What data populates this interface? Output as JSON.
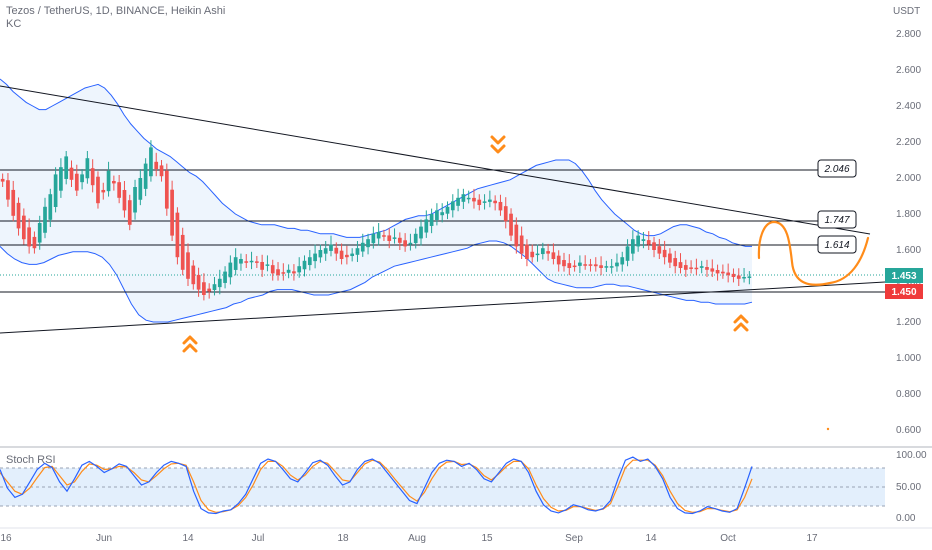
{
  "header": {
    "symbol": "Tezos / TetherUS, 1D, BINANCE, Heikin Ashi",
    "indicator": "KC"
  },
  "colors": {
    "up": "#26a69a",
    "down": "#ef5350",
    "channel": "#2962ff",
    "channel_fill": "#e3effc",
    "trend": "#131722",
    "annotation": "#ff8c1a",
    "rsi_k": "#2962ff",
    "rsi_d": "#ff8c1a"
  },
  "chart_data": {
    "type": "candlestick",
    "y_unit": "USDT",
    "ylim": [
      0.55,
      2.95
    ],
    "y_ticks": [
      "2.800",
      "2.600",
      "2.400",
      "2.200",
      "2.000",
      "1.800",
      "1.600",
      "1.400",
      "1.200",
      "1.000",
      "0.800",
      "0.600"
    ],
    "x_ticks": [
      "16",
      "Jun",
      "14",
      "Jul",
      "18",
      "Aug",
      "15",
      "Sep",
      "14",
      "Oct",
      "17"
    ],
    "levels": [
      "2.046",
      "1.747",
      "1.614"
    ],
    "price_tags": {
      "last": "1.453",
      "support": "1.450"
    },
    "candles_close": [
      1.98,
      1.88,
      1.79,
      1.72,
      1.66,
      1.62,
      1.61,
      1.75,
      1.84,
      1.91,
      2.02,
      2.06,
      2.12,
      1.99,
      1.93,
      2.02,
      2.11,
      1.96,
      1.86,
      1.92,
      2.04,
      1.97,
      1.89,
      1.82,
      1.74,
      1.95,
      2.0,
      2.08,
      2.17,
      2.05,
      2.01,
      1.83,
      1.68,
      1.56,
      1.49,
      1.44,
      1.41,
      1.38,
      1.35,
      1.37,
      1.41,
      1.44,
      1.48,
      1.53,
      1.56,
      1.55,
      1.53,
      1.54,
      1.53,
      1.49,
      1.52,
      1.47,
      1.46,
      1.47,
      1.49,
      1.47,
      1.51,
      1.54,
      1.56,
      1.58,
      1.6,
      1.61,
      1.63,
      1.58,
      1.55,
      1.56,
      1.58,
      1.61,
      1.64,
      1.66,
      1.69,
      1.7,
      1.68,
      1.65,
      1.67,
      1.64,
      1.62,
      1.64,
      1.69,
      1.73,
      1.77,
      1.8,
      1.82,
      1.81,
      1.84,
      1.87,
      1.89,
      1.91,
      1.89,
      1.87,
      1.85,
      1.87,
      1.88,
      1.86,
      1.82,
      1.76,
      1.68,
      1.62,
      1.58,
      1.55,
      1.56,
      1.58,
      1.61,
      1.58,
      1.55,
      1.52,
      1.51,
      1.5,
      1.51,
      1.53,
      1.52,
      1.52,
      1.51,
      1.5,
      1.51,
      1.51,
      1.53,
      1.56,
      1.62,
      1.66,
      1.68,
      1.66,
      1.63,
      1.6,
      1.58,
      1.56,
      1.53,
      1.51,
      1.5,
      1.49,
      1.5,
      1.5,
      1.51,
      1.49,
      1.48,
      1.47,
      1.47,
      1.46,
      1.45,
      1.44,
      1.45,
      1.453
    ],
    "keltner_upper": [
      2.55,
      2.52,
      2.48,
      2.45,
      2.42,
      2.4,
      2.38,
      2.38,
      2.4,
      2.42,
      2.44,
      2.46,
      2.48,
      2.5,
      2.51,
      2.52,
      2.5,
      2.46,
      2.41,
      2.35,
      2.3,
      2.26,
      2.22,
      2.19,
      2.16,
      2.14,
      2.12,
      2.09,
      2.06,
      2.03,
      2.01,
      1.98,
      1.94,
      1.9,
      1.86,
      1.83,
      1.8,
      1.78,
      1.76,
      1.75,
      1.74,
      1.74,
      1.74,
      1.73,
      1.72,
      1.72,
      1.71,
      1.71,
      1.7,
      1.69,
      1.69,
      1.69,
      1.68,
      1.67,
      1.67,
      1.67,
      1.68,
      1.69,
      1.7,
      1.71,
      1.73,
      1.75,
      1.77,
      1.78,
      1.79,
      1.79,
      1.8,
      1.82,
      1.84,
      1.86,
      1.88,
      1.9,
      1.92,
      1.94,
      1.95,
      1.96,
      1.97,
      1.98,
      1.99,
      2.01,
      2.03,
      2.05,
      2.07,
      2.08,
      2.09,
      2.1,
      2.1,
      2.1,
      2.08,
      2.04,
      1.99,
      1.93,
      1.88,
      1.84,
      1.8,
      1.77,
      1.74,
      1.71,
      1.69,
      1.68,
      1.68,
      1.69,
      1.71,
      1.73,
      1.74,
      1.74,
      1.73,
      1.72,
      1.7,
      1.69,
      1.67,
      1.66,
      1.64,
      1.63,
      1.62,
      1.62
    ],
    "keltner_lower": [
      1.62,
      1.58,
      1.55,
      1.53,
      1.52,
      1.52,
      1.53,
      1.55,
      1.57,
      1.58,
      1.59,
      1.59,
      1.59,
      1.58,
      1.56,
      1.52,
      1.46,
      1.38,
      1.3,
      1.24,
      1.21,
      1.2,
      1.2,
      1.2,
      1.21,
      1.22,
      1.23,
      1.24,
      1.25,
      1.26,
      1.27,
      1.28,
      1.3,
      1.31,
      1.33,
      1.34,
      1.35,
      1.37,
      1.38,
      1.38,
      1.38,
      1.37,
      1.36,
      1.35,
      1.35,
      1.35,
      1.36,
      1.37,
      1.38,
      1.4,
      1.42,
      1.45,
      1.47,
      1.49,
      1.51,
      1.52,
      1.53,
      1.54,
      1.55,
      1.56,
      1.57,
      1.58,
      1.59,
      1.6,
      1.61,
      1.63,
      1.64,
      1.65,
      1.65,
      1.64,
      1.62,
      1.59,
      1.56,
      1.52,
      1.48,
      1.44,
      1.42,
      1.41,
      1.4,
      1.39,
      1.39,
      1.39,
      1.4,
      1.41,
      1.41,
      1.4,
      1.4,
      1.39,
      1.38,
      1.37,
      1.36,
      1.35,
      1.34,
      1.33,
      1.32,
      1.32,
      1.31,
      1.31,
      1.3,
      1.3,
      1.3,
      1.3,
      1.3,
      1.31
    ],
    "stoch_rsi_k": [
      75,
      45,
      30,
      35,
      55,
      75,
      85,
      78,
      55,
      40,
      60,
      82,
      88,
      80,
      70,
      76,
      84,
      80,
      65,
      50,
      55,
      70,
      82,
      88,
      85,
      80,
      40,
      12,
      5,
      4,
      8,
      10,
      20,
      35,
      60,
      85,
      92,
      88,
      75,
      60,
      55,
      70,
      86,
      90,
      82,
      65,
      50,
      55,
      75,
      88,
      92,
      85,
      70,
      55,
      40,
      25,
      20,
      45,
      70,
      85,
      90,
      88,
      80,
      85,
      75,
      60,
      55,
      70,
      85,
      92,
      88,
      70,
      40,
      18,
      8,
      5,
      10,
      18,
      15,
      10,
      8,
      12,
      25,
      60,
      90,
      95,
      88,
      92,
      80,
      60,
      30,
      12,
      5,
      4,
      8,
      15,
      12,
      8,
      6,
      12,
      45,
      80
    ],
    "stoch_rsi_d": [
      70,
      55,
      40,
      35,
      45,
      62,
      78,
      80,
      65,
      50,
      55,
      72,
      84,
      82,
      75,
      76,
      80,
      79,
      70,
      58,
      55,
      65,
      76,
      84,
      85,
      82,
      55,
      25,
      10,
      6,
      7,
      10,
      17,
      30,
      50,
      75,
      88,
      88,
      80,
      66,
      58,
      66,
      80,
      88,
      85,
      72,
      58,
      56,
      70,
      84,
      90,
      87,
      75,
      60,
      46,
      32,
      24,
      38,
      60,
      78,
      87,
      88,
      83,
      84,
      78,
      65,
      58,
      68,
      80,
      88,
      88,
      76,
      50,
      28,
      14,
      8,
      9,
      15,
      15,
      12,
      9,
      11,
      20,
      48,
      78,
      90,
      90,
      90,
      82,
      65,
      40,
      20,
      9,
      6,
      7,
      12,
      12,
      9,
      7,
      10,
      30,
      60
    ],
    "rsi_band": [
      80,
      20
    ],
    "rsi_ticks": [
      "100.00",
      "50.00",
      "0.00"
    ]
  }
}
